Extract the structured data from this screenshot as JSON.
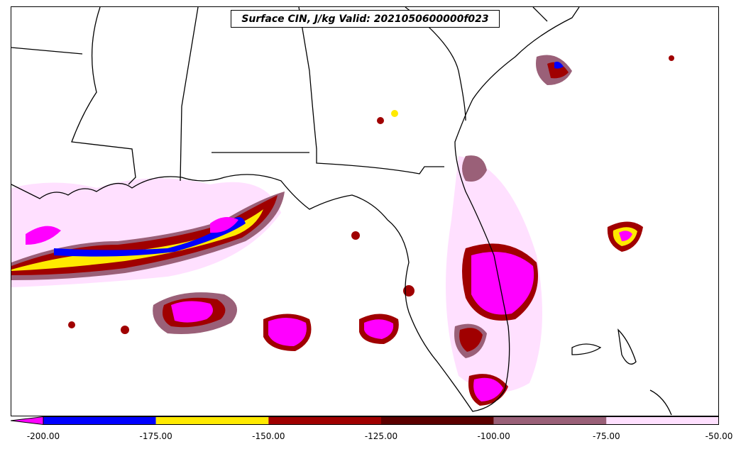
{
  "title": "Surface CIN, J/kg Valid: 2021050600000f023",
  "colorbar": {
    "levels": [
      -200,
      -175,
      -150,
      -125,
      -100,
      -75,
      -50
    ],
    "tick_labels": [
      "-200.00",
      "-175.00",
      "-150.00",
      "-125.00",
      "-100.00",
      "-75.00",
      "-50.00"
    ],
    "colors": [
      "#0000ff",
      "#ffea00",
      "#a00000",
      "#5c0000",
      "#9a6078",
      "#ffe0ff"
    ],
    "extend_low_color": "#ff00ff"
  },
  "legend_colors": {
    "below_min": "#ff00ff",
    "band_200_175": "#0000ff",
    "band_175_150": "#ffea00",
    "band_150_125": "#a00000",
    "band_125_100": "#5c0000",
    "band_100_75": "#9a6078",
    "band_75_50": "#ffe0ff"
  }
}
